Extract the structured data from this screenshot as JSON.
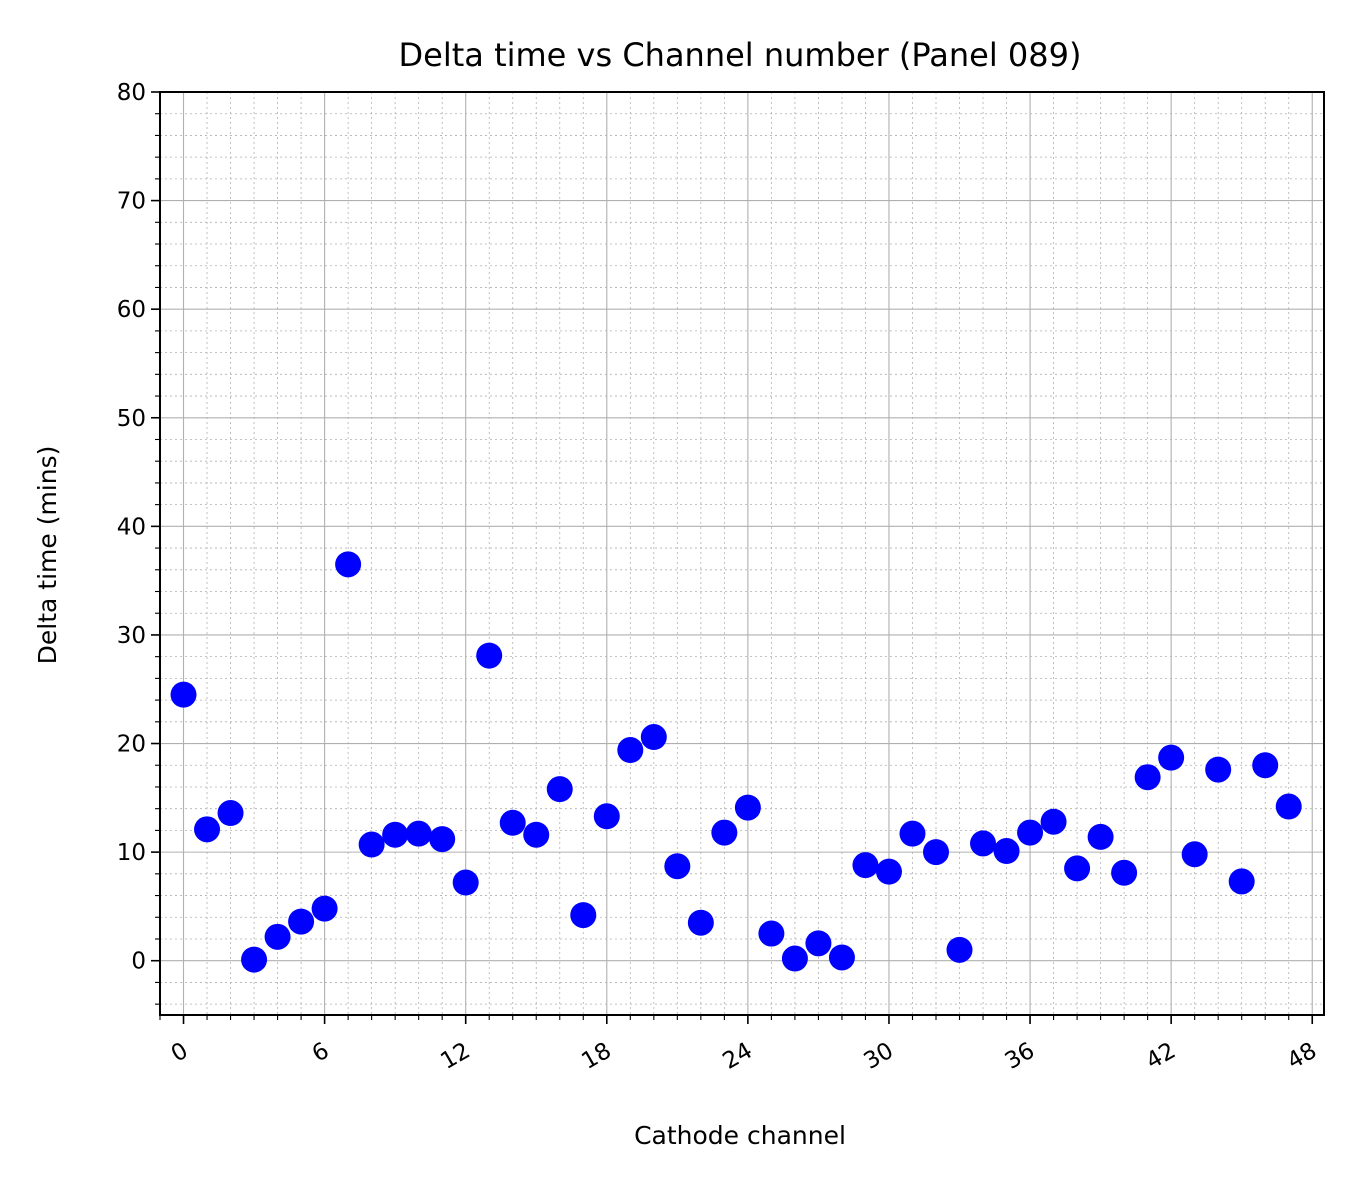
{
  "chart_data": {
    "type": "scatter",
    "title": "Delta time vs Channel number (Panel 089)",
    "xlabel": "Cathode channel",
    "ylabel": "Delta time (mins)",
    "xlim": [
      -1.0,
      48.5
    ],
    "ylim": [
      -5,
      80
    ],
    "x_ticks": [
      0,
      6,
      12,
      18,
      24,
      30,
      36,
      42,
      48
    ],
    "x_minor_step": 1,
    "x_tick_rotation_deg": 30,
    "y_ticks": [
      0,
      10,
      20,
      30,
      40,
      50,
      60,
      70,
      80
    ],
    "y_minor_step": 2,
    "grid": true,
    "grid_minor": true,
    "marker_color": "#0000ff",
    "series": [
      {
        "x": [
          0,
          1,
          2,
          3,
          4,
          5,
          6,
          7,
          8,
          9,
          10,
          11,
          12,
          13,
          14,
          15,
          16,
          17,
          18,
          19,
          20,
          21,
          22,
          23,
          24,
          25,
          26,
          27,
          28,
          29,
          30,
          31,
          32,
          33,
          34,
          35,
          36,
          37,
          38,
          39,
          40,
          41,
          42,
          43,
          44,
          45,
          46,
          47
        ],
        "y": [
          24.5,
          12.1,
          13.6,
          0.1,
          2.2,
          3.6,
          4.8,
          36.5,
          10.7,
          11.6,
          11.7,
          11.2,
          7.2,
          28.1,
          12.7,
          11.6,
          15.8,
          4.2,
          13.3,
          19.4,
          20.6,
          8.7,
          3.5,
          11.8,
          14.1,
          2.5,
          0.2,
          1.6,
          0.3,
          8.8,
          8.2,
          11.7,
          10.0,
          1.0,
          10.8,
          10.1,
          11.8,
          12.8,
          8.5,
          11.4,
          8.1,
          16.9,
          18.7,
          9.8,
          17.6,
          7.3,
          18.0,
          14.2
        ]
      }
    ]
  }
}
